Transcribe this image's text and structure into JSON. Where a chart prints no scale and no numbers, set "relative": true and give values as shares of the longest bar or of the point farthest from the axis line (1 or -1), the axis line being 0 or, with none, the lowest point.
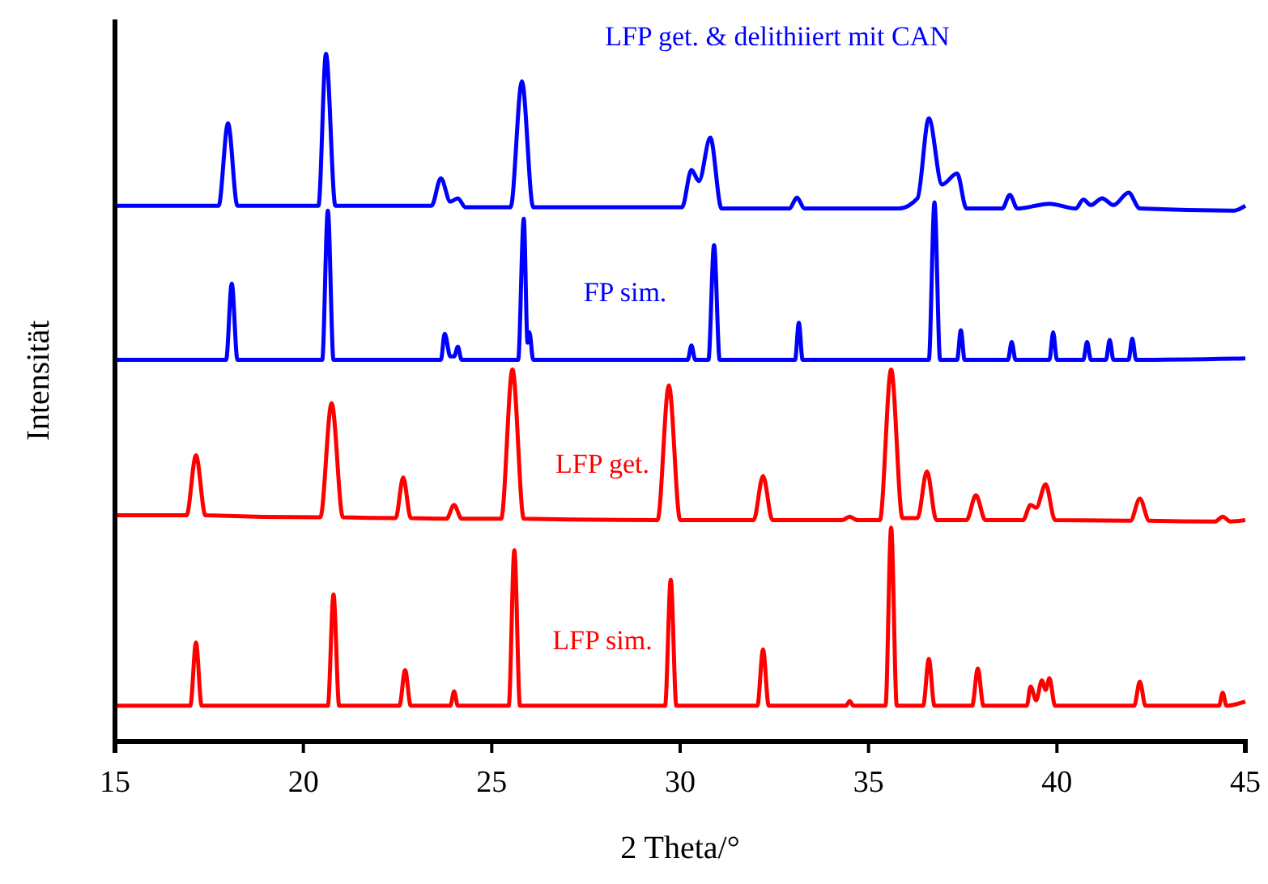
{
  "chart_data": {
    "type": "line",
    "relative": true,
    "xlabel": "2 Theta/°",
    "ylabel": "Intensität",
    "xlim": [
      15,
      45
    ],
    "xticks": [
      15,
      20,
      25,
      30,
      35,
      40,
      45
    ],
    "tick_labels": "x",
    "marker": "none",
    "line_style": "solid",
    "series": [
      {
        "name": "LFP get. & delithiiert mit CAN",
        "color": "#0000ff",
        "x": [
          15,
          17.75,
          18.0,
          18.25,
          20.4,
          20.6,
          20.85,
          23.4,
          23.65,
          23.9,
          24.1,
          24.3,
          25.5,
          25.8,
          26.1,
          30.05,
          30.3,
          30.5,
          30.8,
          31.1,
          32.9,
          33.1,
          33.3,
          35.8,
          36.3,
          36.6,
          36.95,
          37.35,
          37.6,
          38.55,
          38.75,
          38.95,
          39.8,
          40.5,
          40.7,
          40.9,
          41.2,
          41.5,
          41.9,
          42.2,
          44.7,
          45
        ],
        "values": [
          0.779,
          0.779,
          0.899,
          0.779,
          0.779,
          1,
          0.779,
          0.779,
          0.819,
          0.785,
          0.79,
          0.777,
          0.777,
          0.96,
          0.777,
          0.777,
          0.831,
          0.815,
          0.878,
          0.775,
          0.775,
          0.791,
          0.775,
          0.775,
          0.79,
          0.906,
          0.81,
          0.826,
          0.775,
          0.775,
          0.795,
          0.775,
          0.782,
          0.775,
          0.788,
          0.78,
          0.79,
          0.78,
          0.798,
          0.775,
          0.772,
          0.779
        ]
      },
      {
        "name": "FP sim.",
        "color": "#0000ff",
        "x": [
          15,
          17.95,
          18.1,
          18.25,
          20.5,
          20.65,
          20.8,
          23.65,
          23.75,
          23.9,
          24.0,
          24.1,
          24.2,
          25.7,
          25.85,
          25.95,
          26.0,
          26.1,
          30.2,
          30.3,
          30.4,
          30.75,
          30.9,
          31.05,
          33.05,
          33.15,
          33.25,
          36.6,
          36.75,
          36.9,
          37.35,
          37.45,
          37.55,
          38.7,
          38.8,
          38.9,
          39.8,
          39.9,
          40.0,
          40.7,
          40.8,
          40.9,
          41.3,
          41.4,
          41.5,
          41.9,
          42.0,
          42.1,
          45
        ],
        "values": [
          0.555,
          0.555,
          0.666,
          0.555,
          0.555,
          0.772,
          0.555,
          0.555,
          0.593,
          0.56,
          0.56,
          0.574,
          0.555,
          0.555,
          0.76,
          0.58,
          0.595,
          0.555,
          0.555,
          0.576,
          0.555,
          0.555,
          0.722,
          0.555,
          0.555,
          0.609,
          0.555,
          0.555,
          0.784,
          0.555,
          0.555,
          0.598,
          0.555,
          0.555,
          0.581,
          0.555,
          0.555,
          0.595,
          0.555,
          0.555,
          0.581,
          0.555,
          0.555,
          0.584,
          0.555,
          0.555,
          0.586,
          0.555,
          0.557
        ]
      },
      {
        "name": "LFP get.",
        "color": "#ff0000",
        "x": [
          15,
          16.9,
          17.15,
          17.4,
          20.45,
          20.75,
          21.05,
          22.45,
          22.65,
          22.85,
          23.8,
          24.0,
          24.2,
          25.25,
          25.55,
          25.85,
          29.4,
          29.7,
          30.0,
          31.95,
          32.2,
          32.45,
          34.3,
          34.5,
          34.7,
          35.3,
          35.6,
          35.9,
          36.3,
          36.55,
          36.8,
          37.6,
          37.85,
          38.1,
          39.1,
          39.3,
          39.45,
          39.7,
          39.95,
          41.95,
          42.2,
          42.45,
          44.2,
          44.4,
          44.6,
          45
        ],
        "values": [
          0.329,
          0.329,
          0.416,
          0.329,
          0.326,
          0.492,
          0.326,
          0.325,
          0.384,
          0.325,
          0.324,
          0.344,
          0.324,
          0.324,
          0.541,
          0.324,
          0.322,
          0.518,
          0.322,
          0.322,
          0.386,
          0.322,
          0.322,
          0.327,
          0.322,
          0.322,
          0.541,
          0.325,
          0.325,
          0.393,
          0.322,
          0.322,
          0.358,
          0.322,
          0.322,
          0.344,
          0.34,
          0.374,
          0.322,
          0.321,
          0.353,
          0.321,
          0.32,
          0.327,
          0.32,
          0.322
        ]
      },
      {
        "name": "LFP sim.",
        "color": "#ff0000",
        "x": [
          15,
          17.0,
          17.15,
          17.3,
          20.65,
          20.8,
          20.95,
          22.55,
          22.7,
          22.85,
          23.9,
          24.0,
          24.1,
          25.45,
          25.6,
          25.75,
          29.6,
          29.75,
          29.9,
          32.05,
          32.2,
          32.35,
          34.4,
          34.5,
          34.6,
          35.45,
          35.6,
          35.75,
          36.45,
          36.6,
          36.75,
          37.75,
          37.9,
          38.05,
          39.2,
          39.3,
          39.45,
          39.6,
          39.7,
          39.8,
          39.95,
          42.05,
          42.2,
          42.35,
          44.3,
          44.4,
          44.5,
          45
        ],
        "values": [
          0.052,
          0.052,
          0.144,
          0.052,
          0.052,
          0.214,
          0.052,
          0.052,
          0.104,
          0.052,
          0.052,
          0.073,
          0.052,
          0.052,
          0.278,
          0.052,
          0.052,
          0.235,
          0.052,
          0.052,
          0.134,
          0.052,
          0.052,
          0.059,
          0.052,
          0.052,
          0.311,
          0.052,
          0.052,
          0.12,
          0.052,
          0.052,
          0.106,
          0.052,
          0.052,
          0.08,
          0.06,
          0.089,
          0.075,
          0.092,
          0.052,
          0.052,
          0.087,
          0.052,
          0.052,
          0.071,
          0.052,
          0.058
        ]
      }
    ]
  }
}
